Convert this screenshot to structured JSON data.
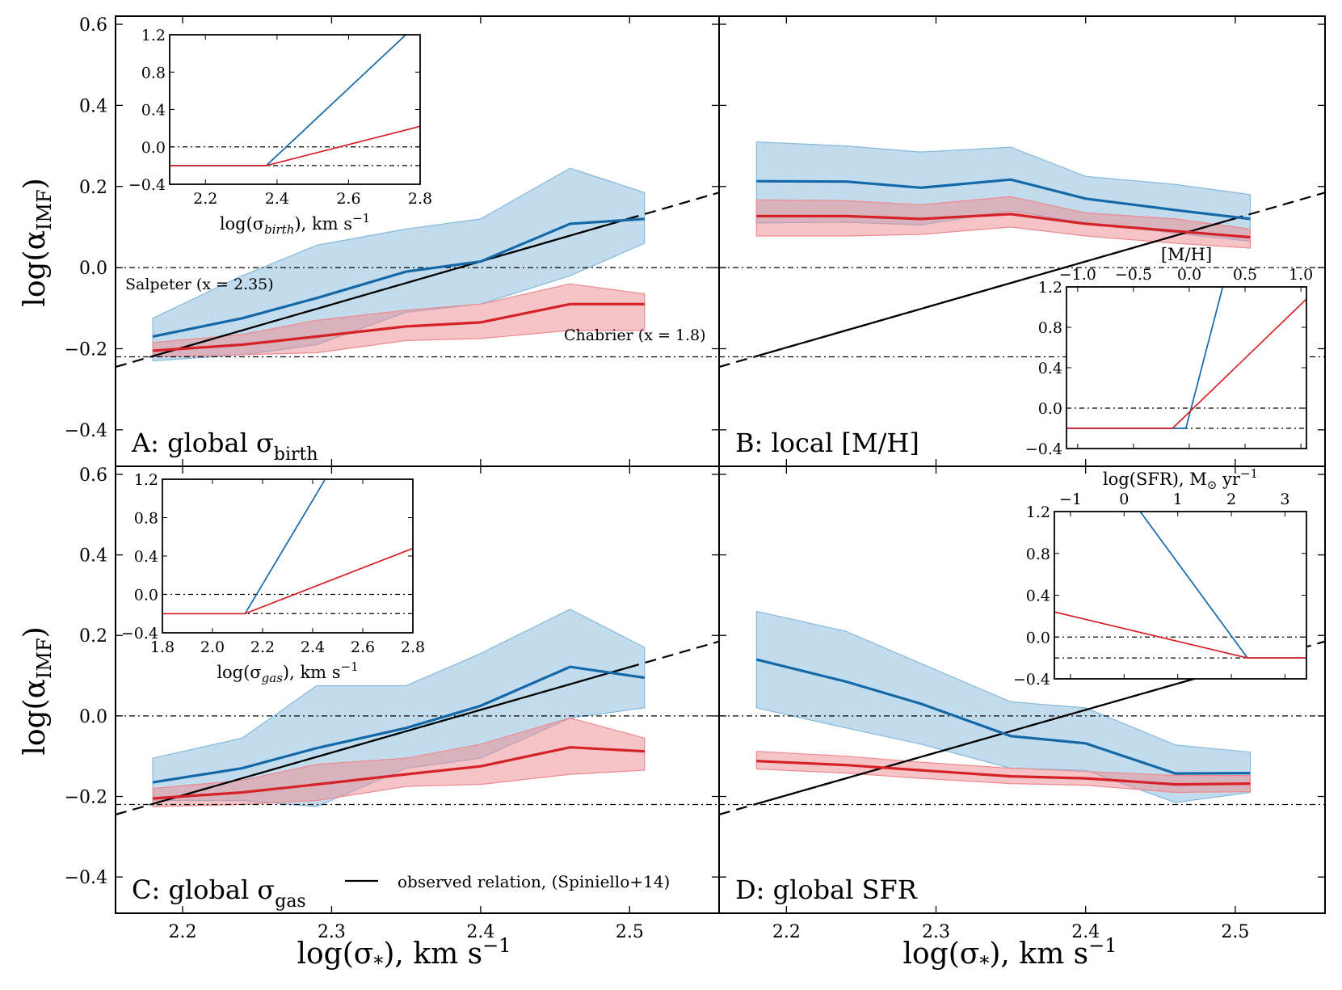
{
  "colors": {
    "blue_line": "#1468a8",
    "blue_fill": "#85b9dc",
    "red_line": "#d42227",
    "red_fill": "#ee8a8f",
    "black": "#000000"
  },
  "labels": {
    "ylabel": "log(α",
    "ylabel_sub": "IMF",
    "ylabel_end": ")",
    "xlabel": "log(σ",
    "xlabel_sub": "*",
    "xlabel_end": "), km s",
    "xlabel_sup": "−1",
    "salpeter": "Salpeter (x = 2.35)",
    "chabrier": "Chabrier (x = 1.8)",
    "legend": "observed relation, (Spiniello+14)"
  },
  "chart_data": {
    "type": "line",
    "x_ticks": [
      "2.2",
      "2.3",
      "2.4",
      "2.5"
    ],
    "y_ticks": [
      "−0.4",
      "−0.2",
      "0.0",
      "0.2",
      "0.4",
      "0.6"
    ],
    "xlim": [
      2.155,
      2.56
    ],
    "ylim": [
      -0.49,
      0.62
    ],
    "reference_lines": {
      "salpeter": 0.0,
      "chabrier": -0.22
    },
    "observed_relation": {
      "x": [
        2.155,
        2.56
      ],
      "y": [
        -0.245,
        0.185
      ],
      "solid_from": 2.18,
      "solid_to": 2.505
    },
    "panels": [
      {
        "id": "A",
        "label": "A: global σ",
        "label_sub": "birth",
        "x": [
          2.18,
          2.24,
          2.29,
          2.35,
          2.4,
          2.46,
          2.51
        ],
        "blue": [
          -0.17,
          -0.125,
          -0.075,
          -0.01,
          0.015,
          0.108,
          0.12
        ],
        "blue_upper": [
          -0.125,
          -0.02,
          0.055,
          0.095,
          0.12,
          0.245,
          0.185
        ],
        "blue_lower": [
          -0.23,
          -0.215,
          -0.19,
          -0.11,
          -0.09,
          -0.02,
          0.06
        ],
        "red": [
          -0.205,
          -0.19,
          -0.17,
          -0.145,
          -0.135,
          -0.09,
          -0.09
        ],
        "red_upper": [
          -0.185,
          -0.165,
          -0.13,
          -0.105,
          -0.09,
          -0.04,
          -0.065
        ],
        "red_lower": [
          -0.22,
          -0.215,
          -0.21,
          -0.18,
          -0.175,
          -0.155,
          -0.155
        ],
        "inset": {
          "xlabel": "log(σ",
          "xlabel_sub": "birth",
          "xlabel_end": "), km s",
          "xlabel_sup": "−1",
          "xlim": [
            2.1,
            2.8
          ],
          "ylim": [
            -0.4,
            1.2
          ],
          "x_ticks": [
            "2.2",
            "2.4",
            "2.6",
            "2.8"
          ],
          "x_tick_values": [
            2.2,
            2.4,
            2.6,
            2.8
          ],
          "y_ticks": [
            "−0.4",
            "0.0",
            "0.4",
            "0.8",
            "1.2"
          ],
          "blue": {
            "x": [
              2.1,
              2.37,
              2.76
            ],
            "y": [
              -0.2,
              -0.2,
              1.2
            ]
          },
          "red": {
            "x": [
              2.1,
              2.37,
              2.8
            ],
            "y": [
              -0.2,
              -0.2,
              0.22
            ]
          }
        }
      },
      {
        "id": "B",
        "label": "B: local [M/H]",
        "label_sub": "",
        "x": [
          2.18,
          2.24,
          2.29,
          2.35,
          2.4,
          2.46,
          2.51
        ],
        "blue": [
          0.213,
          0.212,
          0.197,
          0.217,
          0.17,
          0.142,
          0.12
        ],
        "blue_upper": [
          0.31,
          0.3,
          0.285,
          0.297,
          0.225,
          0.205,
          0.18
        ],
        "blue_lower": [
          0.11,
          0.112,
          0.105,
          0.14,
          0.11,
          0.085,
          0.065
        ],
        "red": [
          0.127,
          0.127,
          0.12,
          0.132,
          0.108,
          0.09,
          0.075
        ],
        "red_upper": [
          0.167,
          0.165,
          0.155,
          0.175,
          0.135,
          0.12,
          0.095
        ],
        "red_lower": [
          0.078,
          0.078,
          0.082,
          0.1,
          0.078,
          0.06,
          0.048
        ],
        "inset": {
          "xlabel": "[M/H]",
          "xlabel_sub": "",
          "xlabel_end": "",
          "xlabel_sup": "",
          "xlim": [
            -1.1,
            1.05
          ],
          "ylim": [
            -0.4,
            1.2
          ],
          "x_ticks": [
            "−1.0",
            "−0.5",
            "0.0",
            "0.5",
            "1.0"
          ],
          "x_tick_values": [
            -1.0,
            -0.5,
            0.0,
            0.5,
            1.0
          ],
          "y_ticks": [
            "−0.4",
            "0.0",
            "0.4",
            "0.8",
            "1.2"
          ],
          "blue": {
            "x": [
              -1.1,
              -0.03,
              0.3
            ],
            "y": [
              -0.2,
              -0.2,
              1.2
            ]
          },
          "red": {
            "x": [
              -1.1,
              -0.15,
              1.05
            ],
            "y": [
              -0.2,
              -0.2,
              1.08
            ]
          }
        }
      },
      {
        "id": "C",
        "label": "C: global σ",
        "label_sub": "gas",
        "x": [
          2.18,
          2.24,
          2.29,
          2.35,
          2.4,
          2.46,
          2.51
        ],
        "blue": [
          -0.165,
          -0.13,
          -0.08,
          -0.03,
          0.025,
          0.122,
          0.095
        ],
        "blue_upper": [
          -0.105,
          -0.055,
          0.075,
          0.075,
          0.155,
          0.265,
          0.17
        ],
        "blue_lower": [
          -0.21,
          -0.21,
          -0.225,
          -0.13,
          -0.105,
          -0.005,
          0.02
        ],
        "red": [
          -0.205,
          -0.19,
          -0.17,
          -0.145,
          -0.125,
          -0.078,
          -0.088
        ],
        "red_upper": [
          -0.18,
          -0.16,
          -0.12,
          -0.105,
          -0.07,
          -0.005,
          -0.055
        ],
        "red_lower": [
          -0.225,
          -0.22,
          -0.21,
          -0.175,
          -0.17,
          -0.145,
          -0.135
        ],
        "inset": {
          "xlabel": "log(σ",
          "xlabel_sub": "gas",
          "xlabel_end": "), km s",
          "xlabel_sup": "−1",
          "xlim": [
            1.8,
            2.8
          ],
          "ylim": [
            -0.4,
            1.2
          ],
          "x_ticks": [
            "1.8",
            "2.0",
            "2.2",
            "2.4",
            "2.6",
            "2.8"
          ],
          "x_tick_values": [
            1.8,
            2.0,
            2.2,
            2.4,
            2.6,
            2.8
          ],
          "y_ticks": [
            "−0.4",
            "0.0",
            "0.4",
            "0.8",
            "1.2"
          ],
          "blue": {
            "x": [
              1.8,
              2.13,
              2.45
            ],
            "y": [
              -0.2,
              -0.2,
              1.2
            ]
          },
          "red": {
            "x": [
              1.8,
              2.13,
              2.8
            ],
            "y": [
              -0.2,
              -0.2,
              0.48
            ]
          }
        }
      },
      {
        "id": "D",
        "label": "D: global SFR",
        "label_sub": "",
        "x": [
          2.18,
          2.24,
          2.29,
          2.35,
          2.4,
          2.46,
          2.51
        ],
        "blue": [
          0.14,
          0.085,
          0.03,
          -0.05,
          -0.068,
          -0.143,
          -0.142
        ],
        "blue_upper": [
          0.26,
          0.21,
          0.13,
          0.035,
          0.02,
          -0.072,
          -0.09
        ],
        "blue_lower": [
          0.02,
          -0.03,
          -0.07,
          -0.13,
          -0.135,
          -0.215,
          -0.19
        ],
        "red": [
          -0.112,
          -0.122,
          -0.135,
          -0.15,
          -0.155,
          -0.17,
          -0.168
        ],
        "red_upper": [
          -0.088,
          -0.1,
          -0.115,
          -0.13,
          -0.138,
          -0.148,
          -0.148
        ],
        "red_lower": [
          -0.132,
          -0.142,
          -0.155,
          -0.168,
          -0.172,
          -0.19,
          -0.188
        ],
        "inset": {
          "xlabel": "log(SFR), M",
          "xlabel_sub": "⊙",
          "xlabel_end": " yr",
          "xlabel_sup": "−1",
          "xlim": [
            -1.3,
            3.4
          ],
          "ylim": [
            -0.4,
            1.2
          ],
          "x_ticks": [
            "−1",
            "0",
            "1",
            "2",
            "3"
          ],
          "x_tick_values": [
            -1,
            0,
            1,
            2,
            3
          ],
          "y_ticks": [
            "−0.4",
            "0.0",
            "0.4",
            "0.8",
            "1.2"
          ],
          "blue": {
            "x": [
              0.3,
              2.3,
              3.4
            ],
            "y": [
              1.2,
              -0.2,
              -0.2
            ]
          },
          "red": {
            "x": [
              -1.3,
              2.3,
              3.4
            ],
            "y": [
              0.24,
              -0.2,
              -0.2
            ]
          }
        }
      }
    ]
  }
}
